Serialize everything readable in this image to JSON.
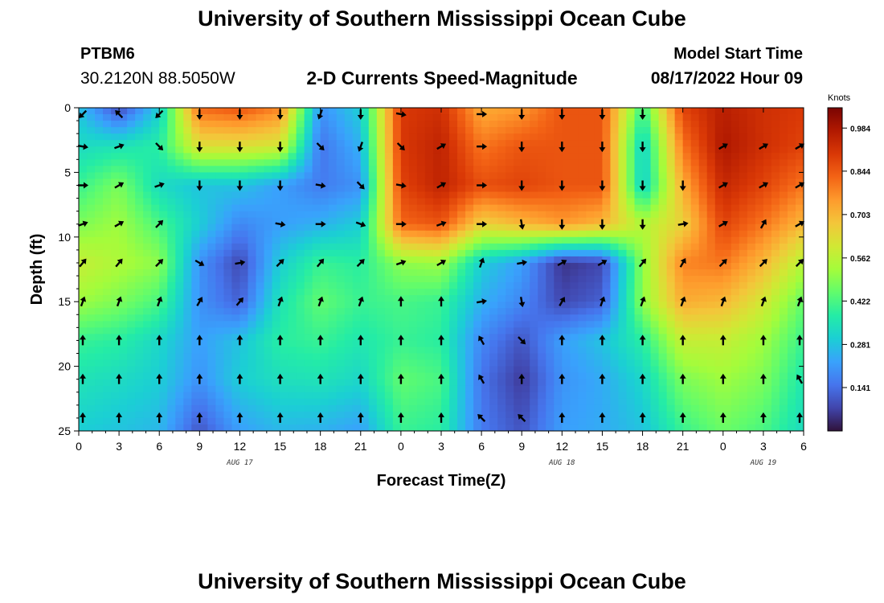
{
  "header": {
    "title": "University of Southern Mississippi Ocean Cube",
    "station_id": "PTBM6",
    "station_coords": "30.2120N  88.5050W",
    "subtitle": "2-D Currents Speed-Magnitude",
    "start_label": "Model Start Time",
    "start_value": "08/17/2022 Hour 09"
  },
  "footer": {
    "title": "University of Southern Mississippi Ocean Cube"
  },
  "chart_data": {
    "type": "heatmap",
    "title": "2-D Currents Speed-Magnitude",
    "xlabel": "Forecast Time(Z)",
    "ylabel": "Depth (ft)",
    "x_tick_labels": [
      "0",
      "3",
      "6",
      "9",
      "12",
      "15",
      "18",
      "21",
      "0",
      "3",
      "6",
      "9",
      "12",
      "15",
      "18",
      "21",
      "0",
      "3",
      "6"
    ],
    "x_hours": [
      0,
      54
    ],
    "date_labels": [
      {
        "label": "AUG 17",
        "hour": 12
      },
      {
        "label": "AUG 18",
        "hour": 36
      },
      {
        "label": "AUG 19",
        "hour": 51
      }
    ],
    "y_tick_labels": [
      "0",
      "5",
      "10",
      "15",
      "20",
      "25"
    ],
    "y_ticks": [
      0,
      5,
      10,
      15,
      20,
      25
    ],
    "ylim": [
      0,
      25
    ],
    "y_inverted": true,
    "colorbar": {
      "unit": "Knots",
      "ticks": [
        "0.984",
        "0.844",
        "0.703",
        "0.562",
        "0.422",
        "0.281",
        "0.141"
      ],
      "tick_values": [
        0.984,
        0.844,
        0.703,
        0.562,
        0.422,
        0.281,
        0.141
      ],
      "range": [
        0,
        1.05
      ],
      "colormap": [
        "#30123b",
        "#4145ab",
        "#4675ed",
        "#39a2fc",
        "#1bcfd4",
        "#24eca6",
        "#61fc6c",
        "#a4fc3b",
        "#d1e834",
        "#f3c63a",
        "#fe9b2d",
        "#f36315",
        "#d93806",
        "#b11901",
        "#7a0402"
      ]
    },
    "arrow_depths": [
      0.5,
      3,
      6,
      9,
      12,
      15,
      18,
      21,
      24
    ],
    "arrow_hours": [
      0,
      3,
      6,
      9,
      12,
      15,
      18,
      21,
      24,
      27,
      30,
      33,
      36,
      39,
      42,
      45,
      48,
      51,
      54
    ],
    "arrow_rows": [
      [
        225,
        315,
        225,
        180,
        180,
        180,
        200,
        180,
        100,
        null,
        90,
        180,
        180,
        180,
        180,
        null,
        null,
        null,
        null
      ],
      [
        100,
        70,
        135,
        180,
        180,
        180,
        135,
        200,
        135,
        60,
        90,
        180,
        180,
        180,
        180,
        null,
        60,
        60,
        60
      ],
      [
        90,
        60,
        70,
        180,
        180,
        180,
        100,
        135,
        100,
        60,
        90,
        180,
        180,
        180,
        180,
        180,
        60,
        60,
        60
      ],
      [
        70,
        60,
        45,
        null,
        null,
        100,
        90,
        110,
        90,
        70,
        90,
        170,
        180,
        180,
        180,
        80,
        60,
        30,
        60
      ],
      [
        40,
        40,
        45,
        120,
        80,
        45,
        40,
        45,
        70,
        60,
        20,
        80,
        60,
        60,
        40,
        30,
        45,
        45,
        45
      ],
      [
        20,
        20,
        20,
        30,
        40,
        20,
        20,
        20,
        0,
        0,
        80,
        170,
        30,
        20,
        20,
        20,
        20,
        20,
        20
      ],
      [
        0,
        0,
        0,
        0,
        0,
        0,
        0,
        0,
        0,
        0,
        330,
        135,
        0,
        0,
        0,
        0,
        0,
        0,
        0
      ],
      [
        0,
        0,
        0,
        0,
        0,
        0,
        0,
        0,
        0,
        0,
        330,
        0,
        0,
        0,
        0,
        0,
        0,
        0,
        330
      ],
      [
        0,
        0,
        0,
        0,
        0,
        0,
        0,
        0,
        0,
        0,
        315,
        315,
        0,
        0,
        0,
        0,
        0,
        0,
        0
      ]
    ],
    "speed_grid": {
      "depths": [
        0,
        3,
        6,
        9,
        12,
        15,
        18,
        21,
        25
      ],
      "hours": [
        0,
        3,
        6,
        9,
        12,
        15,
        18,
        21,
        24,
        27,
        30,
        33,
        36,
        39,
        42,
        45,
        48,
        51,
        54
      ],
      "values": [
        [
          0.28,
          0.08,
          0.3,
          0.82,
          0.85,
          0.78,
          0.2,
          0.3,
          0.9,
          0.92,
          0.72,
          0.75,
          0.85,
          0.85,
          0.4,
          0.88,
          0.96,
          0.92,
          0.9
        ],
        [
          0.33,
          0.35,
          0.38,
          0.62,
          0.62,
          0.6,
          0.15,
          0.25,
          0.9,
          0.95,
          0.8,
          0.85,
          0.85,
          0.85,
          0.3,
          0.8,
          0.98,
          0.92,
          0.88
        ],
        [
          0.4,
          0.48,
          0.33,
          0.28,
          0.28,
          0.22,
          0.16,
          0.2,
          0.88,
          0.95,
          0.86,
          0.88,
          0.85,
          0.85,
          0.3,
          0.72,
          0.94,
          0.88,
          0.8
        ],
        [
          0.48,
          0.52,
          0.42,
          0.3,
          0.18,
          0.22,
          0.25,
          0.3,
          0.82,
          0.85,
          0.65,
          0.7,
          0.75,
          0.7,
          0.55,
          0.65,
          0.88,
          0.8,
          0.7
        ],
        [
          0.58,
          0.54,
          0.5,
          0.2,
          0.08,
          0.3,
          0.4,
          0.38,
          0.5,
          0.52,
          0.3,
          0.22,
          0.05,
          0.08,
          0.5,
          0.78,
          0.8,
          0.7,
          0.55
        ],
        [
          0.52,
          0.48,
          0.42,
          0.2,
          0.12,
          0.35,
          0.45,
          0.4,
          0.42,
          0.4,
          0.25,
          0.18,
          0.08,
          0.12,
          0.5,
          0.72,
          0.7,
          0.6,
          0.45
        ],
        [
          0.4,
          0.38,
          0.32,
          0.22,
          0.28,
          0.38,
          0.4,
          0.36,
          0.4,
          0.38,
          0.18,
          0.1,
          0.22,
          0.28,
          0.38,
          0.58,
          0.58,
          0.52,
          0.4
        ],
        [
          0.35,
          0.33,
          0.3,
          0.2,
          0.3,
          0.34,
          0.35,
          0.32,
          0.45,
          0.42,
          0.15,
          0.06,
          0.2,
          0.24,
          0.32,
          0.48,
          0.52,
          0.48,
          0.36
        ],
        [
          0.3,
          0.28,
          0.26,
          0.1,
          0.22,
          0.26,
          0.25,
          0.22,
          0.4,
          0.38,
          0.16,
          0.1,
          0.22,
          0.24,
          0.28,
          0.4,
          0.46,
          0.42,
          0.33
        ]
      ]
    }
  }
}
